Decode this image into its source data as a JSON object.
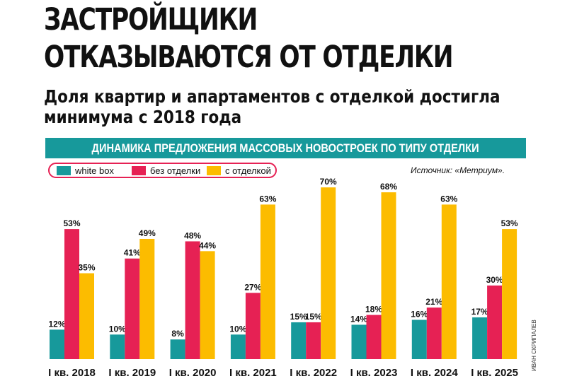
{
  "header": {
    "title_lines": [
      "ЗАСТРОЙЩИКИ",
      "ОТКАЗЫВАЮТСЯ ОТ ОТДЕЛКИ"
    ],
    "subtitle_lines": [
      "Доля квартир и апартаментов с отделкой достигла",
      "минимума с 2018 года"
    ]
  },
  "banner": {
    "text": "ДИНАМИКА ПРЕДЛОЖЕНИЯ МАССОВЫХ НОВОСТРОЕК ПО ТИПУ ОТДЕЛКИ"
  },
  "source": "Источник: «Метриум».",
  "credit": "ИВАН СКРИПАЛЕВ",
  "colors": {
    "white_box": "#17999b",
    "no_finish": "#e62154",
    "finish": "#fcbc00",
    "banner": "#17999b"
  },
  "chart_data": {
    "type": "bar",
    "title": "ДИНАМИКА ПРЕДЛОЖЕНИЯ МАССОВЫХ НОВОСТРОЕК ПО ТИПУ ОТДЕЛКИ",
    "categories": [
      "I кв. 2018",
      "I кв. 2019",
      "I кв. 2020",
      "I кв. 2021",
      "I кв. 2022",
      "I кв. 2023",
      "I кв. 2024",
      "I кв. 2025"
    ],
    "series": [
      {
        "name": "white box",
        "color": "#17999b",
        "values": [
          12,
          10,
          8,
          10,
          15,
          14,
          16,
          17
        ]
      },
      {
        "name": "без отделки",
        "color": "#e62154",
        "values": [
          53,
          41,
          48,
          27,
          15,
          18,
          21,
          30
        ]
      },
      {
        "name": "с отделкой",
        "color": "#fcbc00",
        "values": [
          35,
          49,
          44,
          63,
          70,
          68,
          63,
          53
        ]
      }
    ],
    "value_suffix": "%",
    "ylim": [
      0,
      70
    ],
    "grid": false,
    "legend": "top-left",
    "xlabel": "",
    "ylabel": ""
  }
}
